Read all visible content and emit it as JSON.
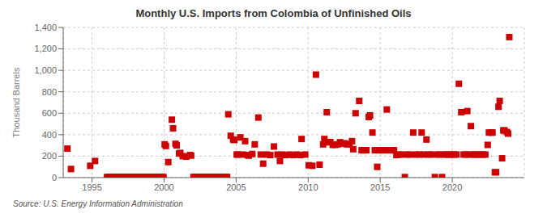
{
  "chart_data": {
    "type": "scatter",
    "title": "Monthly U.S. Imports from Colombia of Unfinished Oils",
    "y_label": "Thousand Barrels",
    "source": "Source: U.S. Energy Information Administration",
    "color": "#cc0000",
    "marker": "square",
    "grid": true,
    "xlim": [
      1993.0,
      2025.0
    ],
    "ylim": [
      0,
      1400
    ],
    "xticks": [
      1995,
      2000,
      2005,
      2010,
      2015,
      2020
    ],
    "yticks": [
      0,
      200,
      400,
      600,
      800,
      {
        "value": 1000,
        "label": "1,000"
      },
      {
        "value": 1200,
        "label": "1,200"
      },
      {
        "value": 1400,
        "label": "1,400"
      }
    ],
    "x": [
      1993.2916666666667,
      1993.5416666666667,
      1994.875,
      1995.2083333333333,
      1996.0416666666667,
      1996.125,
      1996.2083333333333,
      1996.2916666666667,
      1996.375,
      1996.4583333333333,
      1996.5416666666667,
      1996.625,
      1996.7083333333333,
      1996.7916666666667,
      1996.875,
      1996.9583333333333,
      1997.0416666666667,
      1997.125,
      1997.2083333333333,
      1997.2916666666667,
      1997.375,
      1997.4583333333333,
      1997.5416666666667,
      1997.625,
      1997.7083333333333,
      1997.7916666666667,
      1997.875,
      1997.9583333333333,
      1998.0416666666667,
      1998.125,
      1998.2083333333333,
      1998.2916666666667,
      1998.375,
      1998.4583333333333,
      1998.5416666666667,
      1998.625,
      1998.7083333333333,
      1998.7916666666667,
      1998.875,
      1998.9583333333333,
      1999.0416666666667,
      1999.125,
      1999.2083333333333,
      1999.2916666666667,
      1999.375,
      1999.4583333333333,
      1999.5416666666667,
      1999.625,
      1999.7083333333333,
      1999.7916666666667,
      1999.875,
      1999.9583333333333,
      2000.0416666666667,
      2000.125,
      2000.2916666666667,
      2000.5416666666667,
      2000.625,
      2000.7916666666667,
      2000.875,
      2001.0416666666667,
      2001.125,
      2001.2916666666667,
      2001.5416666666667,
      2001.7916666666667,
      2001.875,
      2002.0416666666667,
      2002.125,
      2002.2083333333333,
      2002.2916666666667,
      2002.375,
      2002.4583333333333,
      2002.5416666666667,
      2002.625,
      2002.7083333333333,
      2002.7916666666667,
      2002.875,
      2002.9583333333333,
      2003.0416666666667,
      2003.125,
      2003.2083333333333,
      2003.2916666666667,
      2003.375,
      2003.4583333333333,
      2003.5416666666667,
      2003.625,
      2003.7083333333333,
      2003.7916666666667,
      2003.875,
      2003.9583333333333,
      2004.0416666666667,
      2004.125,
      2004.2083333333333,
      2004.2916666666667,
      2004.375,
      2004.4583333333333,
      2004.625,
      2004.7916666666667,
      2004.875,
      2005.0416666666667,
      2005.125,
      2005.2916666666667,
      2005.4583333333333,
      2005.625,
      2005.7916666666667,
      2005.875,
      2006.125,
      2006.2916666666667,
      2006.5416666666667,
      2006.7083333333333,
      2006.875,
      2007.125,
      2007.375,
      2007.625,
      2007.875,
      2008.0416666666667,
      2008.2083333333333,
      2008.4583333333333,
      2008.7083333333333,
      2008.9583333333333,
      2009.2083333333333,
      2009.4583333333333,
      2009.5416666666667,
      2009.7916666666667,
      2010.0416666666667,
      2010.2916666666667,
      2010.5416666666667,
      2010.7916666666667,
      2011.0416666666667,
      2011.125,
      2011.2916666666667,
      2011.4583333333333,
      2011.5416666666667,
      2011.7083333333333,
      2011.875,
      2012.0416666666667,
      2012.2083333333333,
      2012.375,
      2012.5416666666667,
      2012.7083333333333,
      2012.875,
      2013.0416666666667,
      2013.125,
      2013.2916666666667,
      2013.5416666666667,
      2013.7083333333333,
      2013.875,
      2014.0416666666667,
      2014.2083333333333,
      2014.2916666666667,
      2014.4583333333333,
      2014.625,
      2014.7916666666667,
      2014.9583333333333,
      2015.125,
      2015.2916666666667,
      2015.4583333333333,
      2015.625,
      2015.7916666666667,
      2015.9583333333333,
      2016.125,
      2016.2916666666667,
      2016.4583333333333,
      2016.7083333333333,
      2016.875,
      2017.0416666666667,
      2017.2916666666667,
      2017.4583333333333,
      2017.7083333333333,
      2017.875,
      2018.0416666666667,
      2018.2083333333333,
      2018.375,
      2018.5416666666667,
      2018.7916666666667,
      2018.9583333333333,
      2019.125,
      2019.2916666666667,
      2019.4583333333333,
      2019.625,
      2019.7916666666667,
      2019.9583333333333,
      2020.125,
      2020.2916666666667,
      2020.4583333333333,
      2020.625,
      2020.7916666666667,
      2020.9583333333333,
      2021.0416666666667,
      2021.2083333333333,
      2021.2916666666667,
      2021.4583333333333,
      2021.625,
      2021.7916666666667,
      2021.9583333333333,
      2022.125,
      2022.2916666666667,
      2022.4583333333333,
      2022.5416666666667,
      2022.7083333333333,
      2022.7916666666667,
      2022.9583333333333,
      2023.0416666666667,
      2023.2083333333333,
      2023.2916666666667,
      2023.4583333333333,
      2023.5416666666667,
      2023.625,
      2023.7916666666667,
      2023.875,
      2023.9583333333333
    ],
    "values": [
      270,
      80,
      110,
      155,
      5,
      5,
      5,
      5,
      5,
      5,
      5,
      5,
      5,
      5,
      5,
      5,
      5,
      5,
      5,
      5,
      5,
      5,
      5,
      5,
      5,
      5,
      5,
      5,
      5,
      5,
      5,
      5,
      5,
      5,
      5,
      5,
      5,
      5,
      5,
      5,
      5,
      5,
      5,
      5,
      5,
      5,
      5,
      5,
      5,
      5,
      5,
      5,
      310,
      295,
      145,
      540,
      460,
      315,
      300,
      225,
      230,
      200,
      195,
      210,
      205,
      5,
      5,
      5,
      5,
      5,
      5,
      5,
      5,
      5,
      5,
      5,
      5,
      5,
      5,
      5,
      5,
      5,
      5,
      5,
      5,
      5,
      5,
      5,
      5,
      5,
      5,
      5,
      5,
      5,
      590,
      390,
      355,
      350,
      215,
      215,
      375,
      215,
      340,
      210,
      205,
      220,
      310,
      560,
      215,
      130,
      215,
      210,
      290,
      215,
      155,
      215,
      210,
      215,
      210,
      215,
      210,
      360,
      215,
      115,
      110,
      960,
      120,
      310,
      360,
      610,
      330,
      330,
      305,
      305,
      310,
      330,
      315,
      320,
      310,
      310,
      340,
      265,
      600,
      715,
      255,
      255,
      255,
      565,
      580,
      420,
      255,
      100,
      255,
      255,
      255,
      635,
      255,
      255,
      255,
      210,
      215,
      215,
      5,
      215,
      215,
      420,
      215,
      215,
      420,
      215,
      355,
      215,
      215,
      5,
      215,
      215,
      5,
      215,
      215,
      215,
      215,
      215,
      215,
      875,
      610,
      215,
      215,
      620,
      215,
      480,
      215,
      215,
      215,
      215,
      215,
      215,
      305,
      420,
      420,
      420,
      50,
      50,
      660,
      715,
      180,
      440,
      440,
      425,
      410,
      1310
    ]
  }
}
